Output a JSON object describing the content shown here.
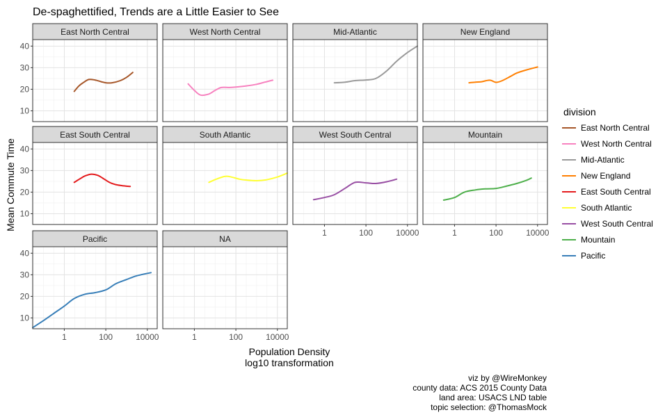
{
  "chart_data": {
    "type": "line",
    "title": "De-spaghettified, Trends are a Little Easier to See",
    "xlabel": "Population Density\nlog10 transformation",
    "ylabel": "Mean Commute Time",
    "x_scale": "log10",
    "xlim": [
      0.03,
      30000
    ],
    "ylim": [
      5,
      43
    ],
    "x_ticks": [
      1,
      100,
      10000
    ],
    "x_tick_labels": [
      "1",
      "100",
      "10000"
    ],
    "y_ticks": [
      10,
      20,
      30,
      40
    ],
    "y_tick_labels": [
      "10",
      "20",
      "30",
      "40"
    ],
    "grid": true,
    "legend_title": "division",
    "legend_position": "right",
    "caption": [
      "viz by @WireMonkey",
      "county data: ACS 2015 County Data",
      "land area: USACS LND table",
      "topic selection: @ThomasMock"
    ],
    "panels": [
      {
        "name": "East North Central",
        "color": "#A65628",
        "x": [
          3,
          5,
          8,
          15,
          30,
          60,
          100,
          200,
          500,
          1000,
          2000
        ],
        "y": [
          19,
          21.5,
          23,
          24.5,
          24.3,
          23.5,
          23,
          23,
          24,
          25.5,
          27.8
        ]
      },
      {
        "name": "West North Central",
        "color": "#F781BF",
        "x": [
          0.5,
          1,
          2,
          5,
          10,
          20,
          50,
          100,
          300,
          1000,
          3000,
          6000
        ],
        "y": [
          22.5,
          19.5,
          17.3,
          17.8,
          19.5,
          20.8,
          20.8,
          21,
          21.5,
          22.3,
          23.5,
          24.2
        ]
      },
      {
        "name": "Mid-Atlantic",
        "color": "#999999",
        "x": [
          3,
          10,
          30,
          100,
          300,
          1000,
          3000,
          10000,
          30000
        ],
        "y": [
          23,
          23.3,
          24,
          24.3,
          25,
          28.5,
          33,
          37,
          40
        ]
      },
      {
        "name": "New England",
        "color": "#FF7F00",
        "x": [
          5,
          10,
          20,
          50,
          100,
          200,
          500,
          1000,
          3000,
          10000
        ],
        "y": [
          23,
          23.3,
          23.5,
          24.2,
          23.2,
          24,
          26,
          27.5,
          29,
          30.3
        ]
      },
      {
        "name": "East South Central",
        "color": "#E41A1C",
        "x": [
          3,
          6,
          10,
          20,
          40,
          70,
          150,
          300,
          600,
          1500
        ],
        "y": [
          24.5,
          26.3,
          27.5,
          28.3,
          27.8,
          26.5,
          24.5,
          23.5,
          23,
          22.6
        ]
      },
      {
        "name": "South Atlantic",
        "color": "#FFFF33",
        "x": [
          5,
          10,
          30,
          60,
          150,
          300,
          1000,
          3000,
          10000,
          30000
        ],
        "y": [
          24.5,
          25.8,
          27.3,
          27,
          26,
          25.6,
          25.3,
          25.7,
          27,
          28.8
        ]
      },
      {
        "name": "West South Central",
        "color": "#984EA3",
        "x": [
          0.3,
          1,
          3,
          10,
          30,
          100,
          300,
          1000,
          3000
        ],
        "y": [
          16.5,
          17.5,
          18.8,
          21.8,
          24.5,
          24.3,
          24,
          24.8,
          26
        ]
      },
      {
        "name": "Mountain",
        "color": "#4DAF4A",
        "x": [
          0.3,
          1,
          3,
          10,
          30,
          100,
          300,
          1000,
          3000,
          5000
        ],
        "y": [
          16.3,
          17.5,
          20,
          21,
          21.5,
          21.7,
          22.7,
          24,
          25.5,
          26.5
        ]
      },
      {
        "name": "Pacific",
        "color": "#377EB8",
        "x": [
          0.03,
          0.1,
          0.3,
          1,
          3,
          10,
          30,
          100,
          300,
          1000,
          3000,
          15000
        ],
        "y": [
          5.5,
          8.8,
          12,
          15.5,
          19,
          21,
          21.7,
          23,
          25.8,
          27.8,
          29.5,
          31
        ]
      },
      {
        "name": "NA",
        "color": "#999999",
        "x": [],
        "y": []
      }
    ]
  }
}
